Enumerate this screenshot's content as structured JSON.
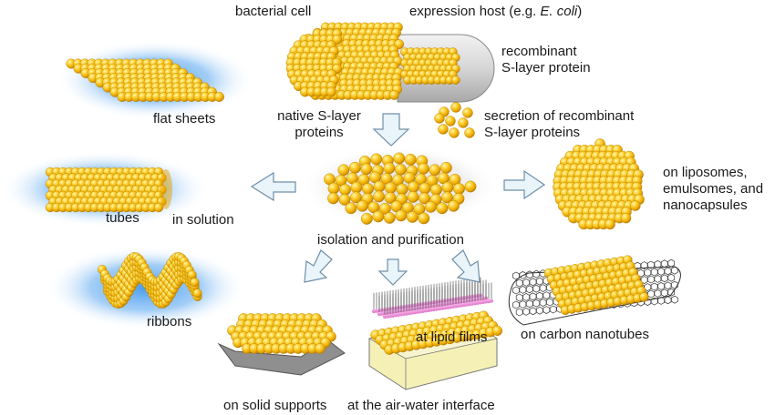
{
  "colors": {
    "sphere_light": "#fff3a8",
    "sphere_mid": "#f7c21c",
    "sphere_dark": "#c78a00",
    "glow_blue": "#4aa3f0",
    "arrow_fill": "#eaf4fb",
    "arrow_stroke": "#6f8fa8",
    "capsule_gray": "#b9b9b9",
    "lipid_pink": "#e87fd0",
    "plate_gray": "#8f8f8f",
    "water_yellow": "#f5f0b5",
    "text": "#1a1a1a"
  },
  "labels": {
    "bacterial_cell": "bacterial cell",
    "expression_host_prefix": "expression host (e.g. ",
    "expression_host_species": "E. coli",
    "expression_host_suffix": ")",
    "recombinant_line1": "recombinant",
    "recombinant_line2": "S-layer protein",
    "native_line1": "native S-layer",
    "native_line2": "proteins",
    "secretion_line1": "secretion of recombinant",
    "secretion_line2": "S-layer proteins",
    "flat_sheets": "flat sheets",
    "tubes": "tubes",
    "in_solution": "in solution",
    "ribbons": "ribbons",
    "isolation": "isolation and purification",
    "liposomes_line1": "on liposomes,",
    "liposomes_line2": "emulsomes, and",
    "liposomes_line3": "nanocapsules",
    "carbon_nanotubes": "on carbon nanotubes",
    "solid_supports": "on solid supports",
    "lipid_films": "at lipid films",
    "air_water": "at the air-water interface"
  },
  "icons": {
    "arrows": [
      "arrow-down-icon",
      "arrow-left-icon",
      "arrow-right-icon",
      "arrow-down-left-icon",
      "arrow-down-icon",
      "arrow-down-right-icon"
    ]
  }
}
